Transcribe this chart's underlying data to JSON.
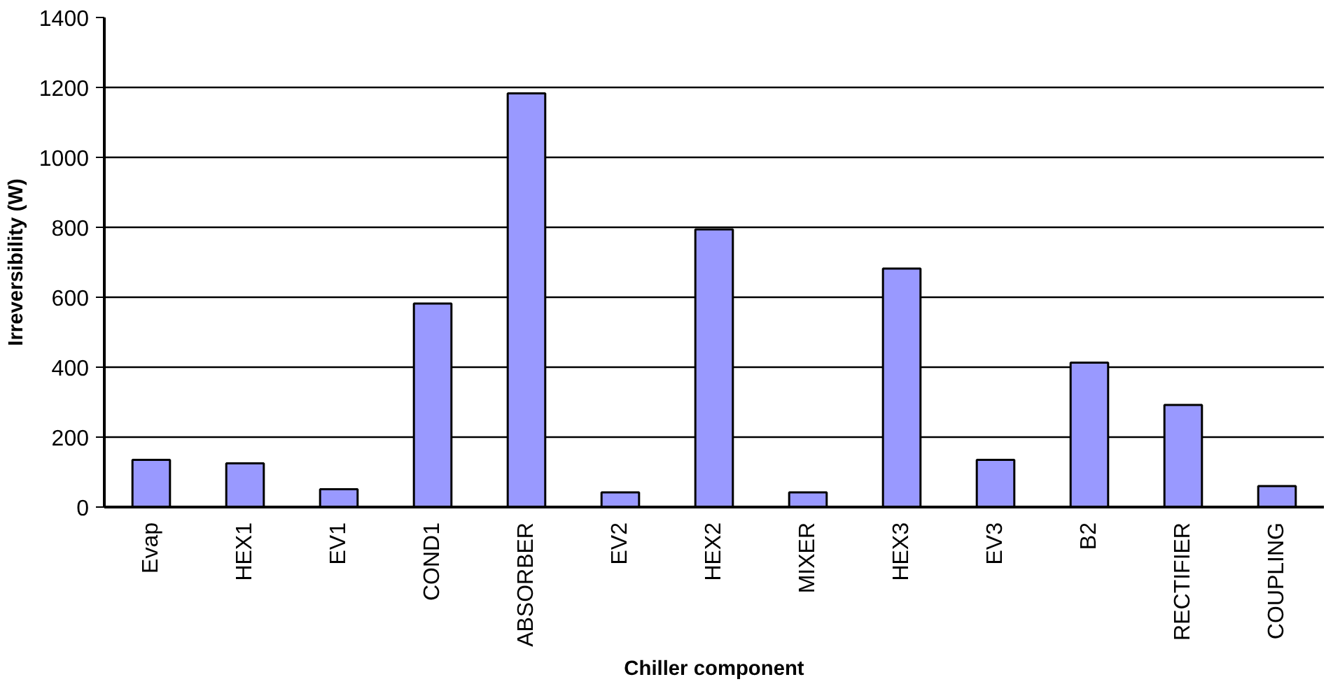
{
  "chart_data": {
    "type": "bar",
    "xlabel": "Chiller component",
    "ylabel": "Irreversibility (W)",
    "categories": [
      "Evap",
      "HEX1",
      "EV1",
      "COND1",
      "ABSORBER",
      "EV2",
      "HEX2",
      "MIXER",
      "HEX3",
      "EV3",
      "B2",
      "RECTIFIER",
      "COUPLING"
    ],
    "values": [
      135,
      125,
      51,
      582,
      1183,
      42,
      794,
      42,
      682,
      135,
      413,
      292,
      60
    ],
    "color": "#9999ff",
    "ylim": [
      0,
      1400
    ],
    "yticks": [
      0,
      200,
      400,
      600,
      800,
      1000,
      1200,
      1400
    ],
    "grid": "y"
  }
}
